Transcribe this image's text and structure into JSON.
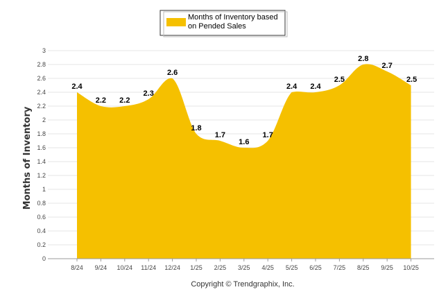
{
  "chart_data": {
    "type": "area",
    "categories": [
      "8/24",
      "9/24",
      "10/24",
      "11/24",
      "12/24",
      "1/25",
      "2/25",
      "3/25",
      "4/25",
      "5/25",
      "6/25",
      "7/25",
      "8/25",
      "9/25",
      "10/25"
    ],
    "series": [
      {
        "name": "Months of Inventory based on Pended Sales",
        "values": [
          2.4,
          2.2,
          2.2,
          2.3,
          2.6,
          1.8,
          1.7,
          1.6,
          1.7,
          2.4,
          2.4,
          2.5,
          2.8,
          2.7,
          2.5
        ],
        "color": "#F5C000"
      }
    ],
    "ylabel": "Months of Inventory",
    "xlabel": "",
    "ylim": [
      0,
      3
    ],
    "yticks": [
      "0",
      "0.2",
      "0.4",
      "0.6",
      "0.8",
      "1",
      "1.2",
      "1.4",
      "1.6",
      "1.8",
      "2",
      "2.2",
      "2.4",
      "2.6",
      "2.8",
      "3"
    ],
    "grid": true,
    "legend_position": "top-center",
    "legend_lines": [
      "Months of Inventory based",
      "on Pended Sales"
    ],
    "credit": "Copyright © Trendgraphix, Inc."
  }
}
